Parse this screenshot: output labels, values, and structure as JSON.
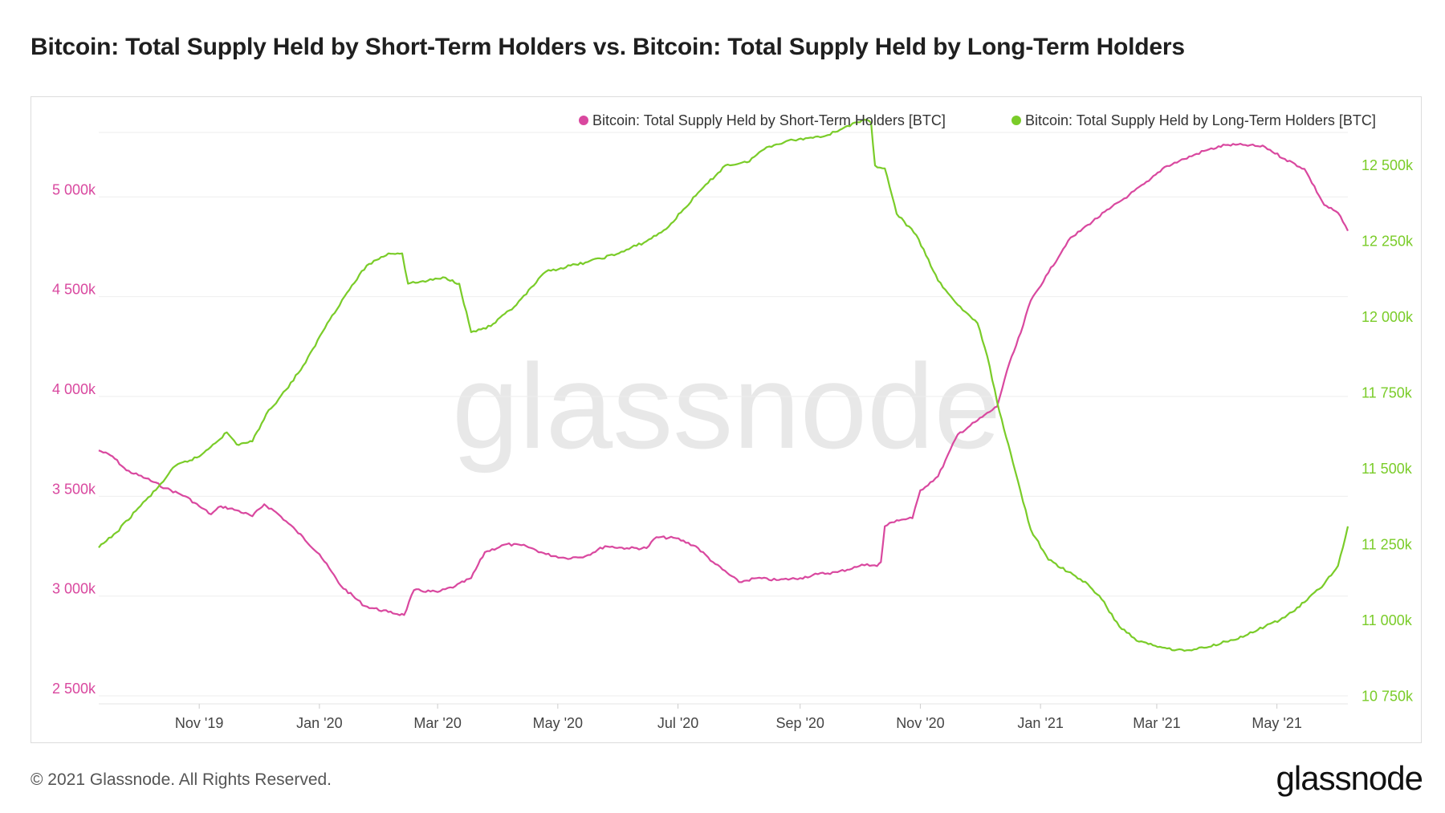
{
  "title": "Bitcoin: Total Supply Held by Short-Term Holders vs. Bitcoin: Total Supply Held by Long-Term Holders",
  "footer": {
    "copyright": "© 2021 Glassnode. All Rights Reserved.",
    "logo": "glassnode"
  },
  "watermark": "glassnode",
  "colors": {
    "short_term": "#d9489f",
    "long_term": "#7acc29",
    "grid": "#eeeeee",
    "watermark": "#e8e8e8"
  },
  "chart_data": {
    "type": "line",
    "legend_position": "top-right",
    "grid": true,
    "x_start": "2019-09-11",
    "x_end": "2021-06-06",
    "x_ticks": [
      "Nov '19",
      "Jan '20",
      "Mar '20",
      "May '20",
      "Jul '20",
      "Sep '20",
      "Nov '20",
      "Jan '21",
      "Mar '21",
      "May '21"
    ],
    "x_tick_dates": [
      "2019-11-01",
      "2020-01-01",
      "2020-03-01",
      "2020-05-01",
      "2020-07-01",
      "2020-09-01",
      "2020-11-01",
      "2021-01-01",
      "2021-03-01",
      "2021-05-01"
    ],
    "y_left": {
      "ticks": [
        "2 500k",
        "3 000k",
        "3 500k",
        "4 000k",
        "4 500k",
        "5 000k"
      ],
      "tick_values": [
        2500000,
        3000000,
        3500000,
        4000000,
        4500000,
        5000000
      ],
      "range": [
        2460000,
        5500000
      ]
    },
    "y_right": {
      "ticks": [
        "10 750k",
        "11 000k",
        "11 250k",
        "11 500k",
        "11 750k",
        "12 000k",
        "12 250k",
        "12 500k"
      ],
      "tick_values": [
        10750000,
        11000000,
        11250000,
        11500000,
        11750000,
        12000000,
        12250000,
        12500000
      ],
      "range": [
        10725000,
        12725000
      ]
    },
    "series": [
      {
        "name": "Bitcoin: Total Supply Held by Short-Term Holders [BTC]",
        "axis": "left",
        "color": "#d9489f",
        "points": [
          [
            "2019-09-11",
            3730000
          ],
          [
            "2019-09-18",
            3700000
          ],
          [
            "2019-09-25",
            3630000
          ],
          [
            "2019-10-05",
            3590000
          ],
          [
            "2019-10-15",
            3540000
          ],
          [
            "2019-10-25",
            3500000
          ],
          [
            "2019-11-01",
            3450000
          ],
          [
            "2019-11-07",
            3410000
          ],
          [
            "2019-11-12",
            3450000
          ],
          [
            "2019-11-20",
            3430000
          ],
          [
            "2019-11-28",
            3400000
          ],
          [
            "2019-12-04",
            3460000
          ],
          [
            "2019-12-10",
            3420000
          ],
          [
            "2019-12-20",
            3330000
          ],
          [
            "2020-01-01",
            3210000
          ],
          [
            "2020-01-12",
            3050000
          ],
          [
            "2020-01-24",
            2950000
          ],
          [
            "2020-02-05",
            2920000
          ],
          [
            "2020-02-13",
            2905000
          ],
          [
            "2020-02-18",
            3030000
          ],
          [
            "2020-03-01",
            3020000
          ],
          [
            "2020-03-10",
            3050000
          ],
          [
            "2020-03-18",
            3090000
          ],
          [
            "2020-03-25",
            3220000
          ],
          [
            "2020-04-05",
            3260000
          ],
          [
            "2020-04-15",
            3250000
          ],
          [
            "2020-04-25",
            3210000
          ],
          [
            "2020-05-05",
            3190000
          ],
          [
            "2020-05-15",
            3200000
          ],
          [
            "2020-05-25",
            3250000
          ],
          [
            "2020-06-05",
            3240000
          ],
          [
            "2020-06-15",
            3240000
          ],
          [
            "2020-06-20",
            3295000
          ],
          [
            "2020-06-30",
            3290000
          ],
          [
            "2020-07-10",
            3250000
          ],
          [
            "2020-07-20",
            3160000
          ],
          [
            "2020-08-01",
            3070000
          ],
          [
            "2020-08-10",
            3090000
          ],
          [
            "2020-08-20",
            3080000
          ],
          [
            "2020-09-01",
            3090000
          ],
          [
            "2020-09-10",
            3110000
          ],
          [
            "2020-09-20",
            3120000
          ],
          [
            "2020-10-01",
            3150000
          ],
          [
            "2020-10-05",
            3160000
          ],
          [
            "2020-10-10",
            3150000
          ],
          [
            "2020-10-12",
            3170000
          ],
          [
            "2020-10-14",
            3350000
          ],
          [
            "2020-10-20",
            3380000
          ],
          [
            "2020-10-28",
            3390000
          ],
          [
            "2020-11-01",
            3530000
          ],
          [
            "2020-11-10",
            3600000
          ],
          [
            "2020-11-20",
            3810000
          ],
          [
            "2020-11-30",
            3880000
          ],
          [
            "2020-12-10",
            3950000
          ],
          [
            "2020-12-15",
            4130000
          ],
          [
            "2020-12-22",
            4320000
          ],
          [
            "2020-12-27",
            4480000
          ],
          [
            "2021-01-05",
            4620000
          ],
          [
            "2021-01-15",
            4780000
          ],
          [
            "2021-01-25",
            4860000
          ],
          [
            "2021-02-05",
            4940000
          ],
          [
            "2021-02-15",
            5010000
          ],
          [
            "2021-02-25",
            5080000
          ],
          [
            "2021-03-05",
            5150000
          ],
          [
            "2021-03-15",
            5190000
          ],
          [
            "2021-03-25",
            5230000
          ],
          [
            "2021-04-05",
            5260000
          ],
          [
            "2021-04-15",
            5260000
          ],
          [
            "2021-04-25",
            5250000
          ],
          [
            "2021-05-05",
            5190000
          ],
          [
            "2021-05-15",
            5140000
          ],
          [
            "2021-05-25",
            4960000
          ],
          [
            "2021-06-01",
            4920000
          ],
          [
            "2021-06-06",
            4830000
          ]
        ]
      },
      {
        "name": "Bitcoin: Total Supply Held by Long-Term Holders [BTC]",
        "axis": "right",
        "color": "#7acc29",
        "points": [
          [
            "2019-09-11",
            11240000
          ],
          [
            "2019-09-20",
            11290000
          ],
          [
            "2019-10-01",
            11370000
          ],
          [
            "2019-10-10",
            11430000
          ],
          [
            "2019-10-20",
            11510000
          ],
          [
            "2019-11-01",
            11540000
          ],
          [
            "2019-11-08",
            11580000
          ],
          [
            "2019-11-15",
            11620000
          ],
          [
            "2019-11-20",
            11580000
          ],
          [
            "2019-11-28",
            11590000
          ],
          [
            "2019-12-05",
            11680000
          ],
          [
            "2019-12-15",
            11760000
          ],
          [
            "2019-12-25",
            11850000
          ],
          [
            "2020-01-05",
            11980000
          ],
          [
            "2020-01-15",
            12080000
          ],
          [
            "2020-01-25",
            12170000
          ],
          [
            "2020-02-05",
            12210000
          ],
          [
            "2020-02-12",
            12210000
          ],
          [
            "2020-02-15",
            12110000
          ],
          [
            "2020-02-25",
            12120000
          ],
          [
            "2020-03-05",
            12130000
          ],
          [
            "2020-03-12",
            12110000
          ],
          [
            "2020-03-18",
            11950000
          ],
          [
            "2020-03-28",
            11970000
          ],
          [
            "2020-04-10",
            12040000
          ],
          [
            "2020-04-25",
            12150000
          ],
          [
            "2020-05-15",
            12180000
          ],
          [
            "2020-06-01",
            12210000
          ],
          [
            "2020-06-15",
            12250000
          ],
          [
            "2020-06-25",
            12290000
          ],
          [
            "2020-07-10",
            12400000
          ],
          [
            "2020-07-25",
            12500000
          ],
          [
            "2020-08-05",
            12510000
          ],
          [
            "2020-08-15",
            12560000
          ],
          [
            "2020-08-25",
            12580000
          ],
          [
            "2020-09-05",
            12590000
          ],
          [
            "2020-09-15",
            12600000
          ],
          [
            "2020-09-25",
            12630000
          ],
          [
            "2020-10-05",
            12650000
          ],
          [
            "2020-10-07",
            12640000
          ],
          [
            "2020-10-09",
            12500000
          ],
          [
            "2020-10-14",
            12490000
          ],
          [
            "2020-10-20",
            12340000
          ],
          [
            "2020-10-30",
            12270000
          ],
          [
            "2020-11-10",
            12120000
          ],
          [
            "2020-11-20",
            12040000
          ],
          [
            "2020-11-30",
            11980000
          ],
          [
            "2020-12-05",
            11870000
          ],
          [
            "2020-12-10",
            11720000
          ],
          [
            "2020-12-18",
            11520000
          ],
          [
            "2020-12-27",
            11300000
          ],
          [
            "2021-01-05",
            11200000
          ],
          [
            "2021-01-15",
            11160000
          ],
          [
            "2021-01-25",
            11120000
          ],
          [
            "2021-02-01",
            11070000
          ],
          [
            "2021-02-10",
            10980000
          ],
          [
            "2021-02-20",
            10930000
          ],
          [
            "2021-03-05",
            10910000
          ],
          [
            "2021-03-15",
            10900000
          ],
          [
            "2021-03-25",
            10910000
          ],
          [
            "2021-04-05",
            10930000
          ],
          [
            "2021-04-15",
            10950000
          ],
          [
            "2021-04-25",
            10980000
          ],
          [
            "2021-05-05",
            11010000
          ],
          [
            "2021-05-15",
            11060000
          ],
          [
            "2021-05-25",
            11120000
          ],
          [
            "2021-06-01",
            11180000
          ],
          [
            "2021-06-06",
            11310000
          ]
        ]
      }
    ]
  }
}
